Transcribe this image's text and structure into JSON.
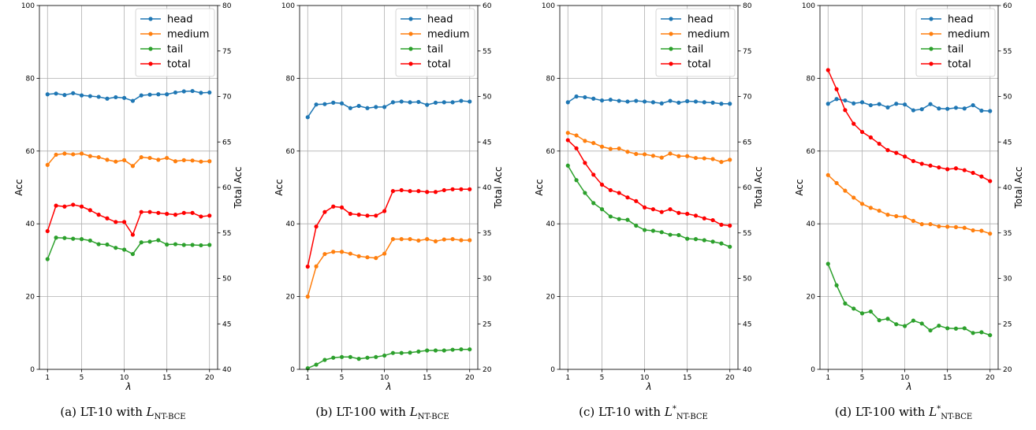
{
  "colors": {
    "head": "#1f77b4",
    "medium": "#ff7f0e",
    "tail": "#2ca02c",
    "total": "#ff0000",
    "grid": "#b0b0b0"
  },
  "chart_data": [
    {
      "type": "line",
      "caption": {
        "prefix": "(a) LT-10 with ",
        "loss": "L",
        "sub": "NT-BCE",
        "sup": ""
      },
      "xlabel": "λ",
      "ylabel": "Acc",
      "ylabel_right": "Total Acc",
      "x": [
        1,
        2,
        3,
        4,
        5,
        6,
        7,
        8,
        9,
        10,
        11,
        12,
        13,
        14,
        15,
        16,
        17,
        18,
        19,
        20
      ],
      "xticks": [
        1,
        5,
        10,
        15,
        20
      ],
      "ylim": [
        0,
        100
      ],
      "yticks": [
        0,
        20,
        40,
        60,
        80,
        100
      ],
      "ylim_right": [
        40,
        80
      ],
      "yticks_right": [
        40,
        45,
        50,
        55,
        60,
        65,
        70,
        75,
        80
      ],
      "legend_position": "top-right",
      "series": [
        {
          "name": "head",
          "axis": "left",
          "values": [
            75.6,
            75.8,
            75.4,
            75.9,
            75.3,
            75.1,
            74.9,
            74.4,
            74.8,
            74.6,
            73.8,
            75.3,
            75.5,
            75.6,
            75.6,
            76.1,
            76.4,
            76.5,
            76.0,
            76.1
          ]
        },
        {
          "name": "medium",
          "axis": "left",
          "values": [
            56.2,
            59.0,
            59.3,
            59.1,
            59.3,
            58.6,
            58.3,
            57.6,
            57.1,
            57.5,
            55.9,
            58.3,
            58.1,
            57.6,
            58.1,
            57.2,
            57.5,
            57.4,
            57.1,
            57.2
          ]
        },
        {
          "name": "tail",
          "axis": "left",
          "values": [
            30.3,
            36.2,
            36.1,
            35.9,
            35.8,
            35.4,
            34.4,
            34.3,
            33.4,
            32.9,
            31.7,
            34.9,
            35.1,
            35.5,
            34.3,
            34.4,
            34.2,
            34.2,
            34.1,
            34.2
          ]
        },
        {
          "name": "total",
          "axis": "right",
          "values": [
            55.2,
            58.0,
            57.9,
            58.1,
            57.9,
            57.5,
            57.0,
            56.6,
            56.2,
            56.2,
            54.8,
            57.3,
            57.3,
            57.2,
            57.1,
            57.0,
            57.2,
            57.2,
            56.8,
            56.9
          ]
        }
      ]
    },
    {
      "type": "line",
      "caption": {
        "prefix": "(b) LT-100 with ",
        "loss": "L",
        "sub": "NT-BCE",
        "sup": ""
      },
      "xlabel": "λ",
      "ylabel": "Acc",
      "ylabel_right": "Total Acc",
      "x": [
        1,
        2,
        3,
        4,
        5,
        6,
        7,
        8,
        9,
        10,
        11,
        12,
        13,
        14,
        15,
        16,
        17,
        18,
        19,
        20
      ],
      "xticks": [
        1,
        5,
        10,
        15,
        20
      ],
      "ylim": [
        0,
        100
      ],
      "yticks": [
        0,
        20,
        40,
        60,
        80,
        100
      ],
      "ylim_right": [
        20,
        60
      ],
      "yticks_right": [
        20,
        25,
        30,
        35,
        40,
        45,
        50,
        55,
        60
      ],
      "legend_position": "top-right",
      "series": [
        {
          "name": "head",
          "axis": "left",
          "values": [
            69.3,
            72.8,
            72.9,
            73.3,
            73.1,
            71.8,
            72.4,
            71.8,
            72.1,
            72.1,
            73.4,
            73.6,
            73.4,
            73.5,
            72.7,
            73.3,
            73.4,
            73.4,
            73.8,
            73.6
          ]
        },
        {
          "name": "medium",
          "axis": "left",
          "values": [
            20.0,
            28.3,
            31.7,
            32.3,
            32.3,
            31.8,
            31.1,
            30.8,
            30.6,
            31.8,
            35.8,
            35.8,
            35.8,
            35.4,
            35.8,
            35.2,
            35.7,
            35.8,
            35.5,
            35.5
          ]
        },
        {
          "name": "tail",
          "axis": "left",
          "values": [
            0.3,
            1.3,
            2.6,
            3.2,
            3.4,
            3.4,
            2.9,
            3.2,
            3.4,
            3.8,
            4.5,
            4.5,
            4.6,
            4.9,
            5.2,
            5.2,
            5.2,
            5.4,
            5.5,
            5.5
          ]
        },
        {
          "name": "total",
          "axis": "right",
          "values": [
            31.3,
            35.7,
            37.3,
            37.9,
            37.8,
            37.1,
            37.0,
            36.9,
            36.9,
            37.4,
            39.6,
            39.7,
            39.6,
            39.6,
            39.5,
            39.5,
            39.7,
            39.8,
            39.8,
            39.8
          ]
        }
      ]
    },
    {
      "type": "line",
      "caption": {
        "prefix": "(c) LT-10 with ",
        "loss": "L",
        "sub": "NT-BCE",
        "sup": "*"
      },
      "xlabel": "λ",
      "ylabel": "Acc",
      "ylabel_right": "Total Acc",
      "x": [
        1,
        2,
        3,
        4,
        5,
        6,
        7,
        8,
        9,
        10,
        11,
        12,
        13,
        14,
        15,
        16,
        17,
        18,
        19,
        20
      ],
      "xticks": [
        1,
        5,
        10,
        15,
        20
      ],
      "ylim": [
        0,
        100
      ],
      "yticks": [
        0,
        20,
        40,
        60,
        80,
        100
      ],
      "ylim_right": [
        40,
        80
      ],
      "yticks_right": [
        40,
        45,
        50,
        55,
        60,
        65,
        70,
        75,
        80
      ],
      "legend_position": "top-right",
      "series": [
        {
          "name": "head",
          "axis": "left",
          "values": [
            73.4,
            75.0,
            74.8,
            74.4,
            73.9,
            74.1,
            73.8,
            73.6,
            73.8,
            73.6,
            73.4,
            73.1,
            73.8,
            73.3,
            73.7,
            73.6,
            73.4,
            73.3,
            73.0,
            73.0
          ]
        },
        {
          "name": "medium",
          "axis": "left",
          "values": [
            65.0,
            64.3,
            62.8,
            62.2,
            61.2,
            60.6,
            60.7,
            59.8,
            59.2,
            59.1,
            58.7,
            58.2,
            59.3,
            58.6,
            58.6,
            58.1,
            58.0,
            57.8,
            57.0,
            57.6
          ]
        },
        {
          "name": "tail",
          "axis": "left",
          "values": [
            56.0,
            52.0,
            48.5,
            45.7,
            44.0,
            42.0,
            41.3,
            41.1,
            39.5,
            38.3,
            38.1,
            37.7,
            37.0,
            36.9,
            35.9,
            35.8,
            35.5,
            35.1,
            34.6,
            33.7
          ]
        },
        {
          "name": "total",
          "axis": "right",
          "values": [
            65.2,
            64.3,
            62.7,
            61.4,
            60.3,
            59.7,
            59.4,
            58.9,
            58.5,
            57.8,
            57.6,
            57.3,
            57.6,
            57.2,
            57.1,
            56.9,
            56.6,
            56.4,
            55.9,
            55.8
          ]
        }
      ]
    },
    {
      "type": "line",
      "caption": {
        "prefix": "(d) LT-100 with ",
        "loss": "L",
        "sub": "NT-BCE",
        "sup": "*"
      },
      "xlabel": "λ",
      "ylabel": "Acc",
      "ylabel_right": "Total Acc",
      "x": [
        1,
        2,
        3,
        4,
        5,
        6,
        7,
        8,
        9,
        10,
        11,
        12,
        13,
        14,
        15,
        16,
        17,
        18,
        19,
        20
      ],
      "xticks": [
        1,
        5,
        10,
        15,
        20
      ],
      "ylim": [
        0,
        100
      ],
      "yticks": [
        0,
        20,
        40,
        60,
        80,
        100
      ],
      "ylim_right": [
        20,
        60
      ],
      "yticks_right": [
        20,
        25,
        30,
        35,
        40,
        45,
        50,
        55,
        60
      ],
      "legend_position": "top-right",
      "series": [
        {
          "name": "head",
          "axis": "left",
          "values": [
            73.0,
            74.3,
            73.9,
            73.1,
            73.4,
            72.6,
            72.9,
            72.0,
            73.0,
            72.8,
            71.2,
            71.5,
            72.9,
            71.7,
            71.6,
            71.9,
            71.7,
            72.6,
            71.1,
            71.0
          ]
        },
        {
          "name": "medium",
          "axis": "left",
          "values": [
            53.4,
            51.2,
            49.1,
            47.2,
            45.5,
            44.4,
            43.6,
            42.5,
            42.1,
            41.9,
            40.8,
            39.9,
            39.9,
            39.3,
            39.2,
            39.1,
            38.9,
            38.2,
            38.1,
            37.3
          ]
        },
        {
          "name": "tail",
          "axis": "left",
          "values": [
            29.0,
            23.1,
            18.1,
            16.7,
            15.4,
            15.9,
            13.5,
            13.9,
            12.4,
            11.9,
            13.4,
            12.6,
            10.7,
            12.0,
            11.3,
            11.2,
            11.3,
            10.0,
            10.2,
            9.4
          ]
        },
        {
          "name": "total",
          "axis": "right",
          "values": [
            52.9,
            50.8,
            48.5,
            47.0,
            46.1,
            45.5,
            44.8,
            44.1,
            43.8,
            43.4,
            42.9,
            42.6,
            42.4,
            42.2,
            42.0,
            42.1,
            41.9,
            41.6,
            41.2,
            40.7
          ]
        }
      ]
    }
  ]
}
